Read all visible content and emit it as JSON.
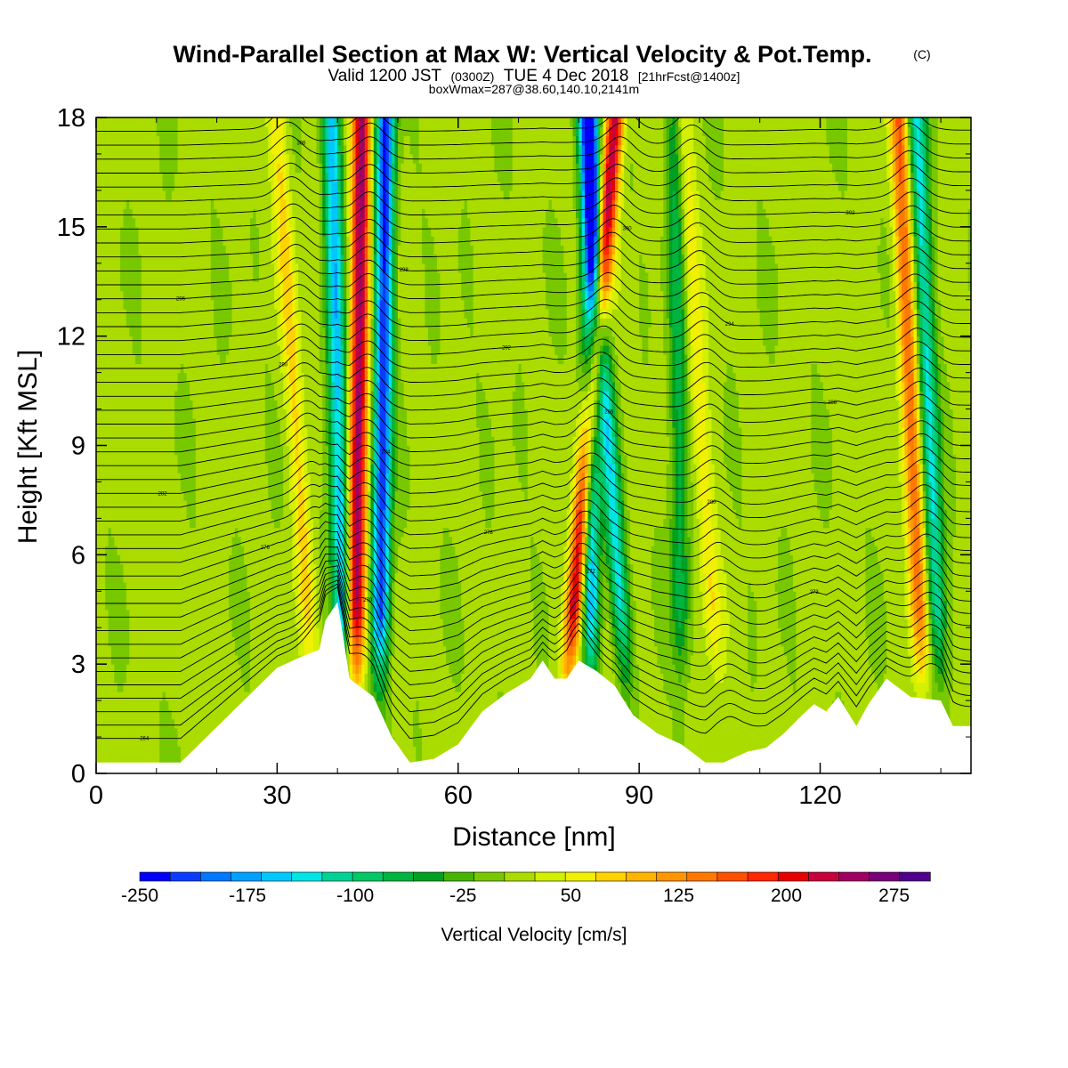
{
  "title": {
    "main": "Wind-Parallel Section at Max W: Vertical Velocity & Pot.Temp.",
    "copyright": "(C)",
    "valid_a": "Valid 1200 JST",
    "valid_z": "(0300Z)",
    "valid_b": "TUE 4 Dec 2018",
    "valid_c": "[21hrFcst@1400z]",
    "box": "boxWmax=287@38.60,140.10,2141m"
  },
  "chart_data": {
    "type": "heatmap",
    "xlabel": "Distance [nm]",
    "ylabel": "Height [Kft MSL]",
    "xlim": [
      0,
      145
    ],
    "ylim": [
      0,
      18
    ],
    "x_ticks": [
      "0",
      "30",
      "60",
      "90",
      "120"
    ],
    "y_ticks": [
      "0",
      "3",
      "6",
      "9",
      "12",
      "15",
      "18"
    ],
    "colorbar": {
      "label": "Vertical Velocity [cm/s]",
      "tick_labels": [
        "-250",
        "-175",
        "-100",
        "-25",
        "50",
        "125",
        "200",
        "275"
      ],
      "min": -250,
      "max": 300,
      "colors": [
        "#0000ff",
        "#0a3cff",
        "#0078ff",
        "#00a0ff",
        "#00c8ff",
        "#00e6e6",
        "#00d296",
        "#00c864",
        "#00b440",
        "#00a020",
        "#46b400",
        "#78c800",
        "#aadc00",
        "#d2f000",
        "#f0f000",
        "#ffd200",
        "#ffb400",
        "#ff9600",
        "#ff7800",
        "#ff5000",
        "#ff2800",
        "#e60000",
        "#c8003c",
        "#a00064",
        "#780078",
        "#50008c"
      ]
    },
    "terrain_kft": [
      [
        0,
        0.3
      ],
      [
        14,
        0.3
      ],
      [
        22,
        1.6
      ],
      [
        30,
        2.9
      ],
      [
        34,
        3.2
      ],
      [
        37,
        3.4
      ],
      [
        38,
        4.2
      ],
      [
        40,
        4.7
      ],
      [
        41,
        3.7
      ],
      [
        42,
        2.6
      ],
      [
        46,
        2.1
      ],
      [
        49,
        1.0
      ],
      [
        52,
        0.3
      ],
      [
        56,
        0.4
      ],
      [
        60,
        0.8
      ],
      [
        64,
        1.7
      ],
      [
        68,
        2.2
      ],
      [
        72,
        2.6
      ],
      [
        74,
        3.1
      ],
      [
        76,
        2.6
      ],
      [
        78,
        2.6
      ],
      [
        80,
        3.1
      ],
      [
        83,
        2.8
      ],
      [
        86,
        2.4
      ],
      [
        89,
        1.6
      ],
      [
        93,
        1.1
      ],
      [
        97,
        0.8
      ],
      [
        101,
        0.3
      ],
      [
        104,
        0.3
      ],
      [
        108,
        0.6
      ],
      [
        111,
        0.7
      ],
      [
        114,
        1.1
      ],
      [
        117,
        1.6
      ],
      [
        119,
        1.9
      ],
      [
        121,
        1.7
      ],
      [
        123,
        2.1
      ],
      [
        126,
        1.3
      ],
      [
        128,
        1.9
      ],
      [
        131,
        2.6
      ],
      [
        135,
        2.1
      ],
      [
        140,
        2.0
      ],
      [
        142,
        1.3
      ],
      [
        145,
        1.3
      ]
    ],
    "updraft_bands": [
      {
        "x_bottom": 43,
        "x_top": 44,
        "peak": 240
      },
      {
        "x_bottom": 78,
        "x_top": 86,
        "peak": 225
      },
      {
        "x_bottom": 137,
        "x_top": 133,
        "peak": 140
      },
      {
        "x_bottom": 36,
        "x_top": 30,
        "peak": 60
      },
      {
        "x_bottom": 103,
        "x_top": 97,
        "peak": 55
      }
    ],
    "downdraft_bands": [
      {
        "x_bottom": 41,
        "x_top": 39,
        "peak": -170
      },
      {
        "x_bottom": 47,
        "x_top": 48,
        "peak": -240
      },
      {
        "x_bottom": 82,
        "x_top": 82,
        "peak": -190
      },
      {
        "x_bottom": 88,
        "x_top": 81,
        "peak": -140
      },
      {
        "x_bottom": 140,
        "x_top": 136,
        "peak": -140
      },
      {
        "x_bottom": 97,
        "x_top": 96,
        "peak": -80
      }
    ],
    "potential_temperature_contours": {
      "min_label": 264,
      "max_label": 309,
      "interval": 1,
      "visible_labels": [
        "264",
        "270",
        "272",
        "273",
        "276",
        "278",
        "280",
        "282",
        "284",
        "286",
        "288",
        "290",
        "292",
        "294",
        "296",
        "298",
        "300",
        "302",
        "306",
        "309"
      ]
    }
  }
}
